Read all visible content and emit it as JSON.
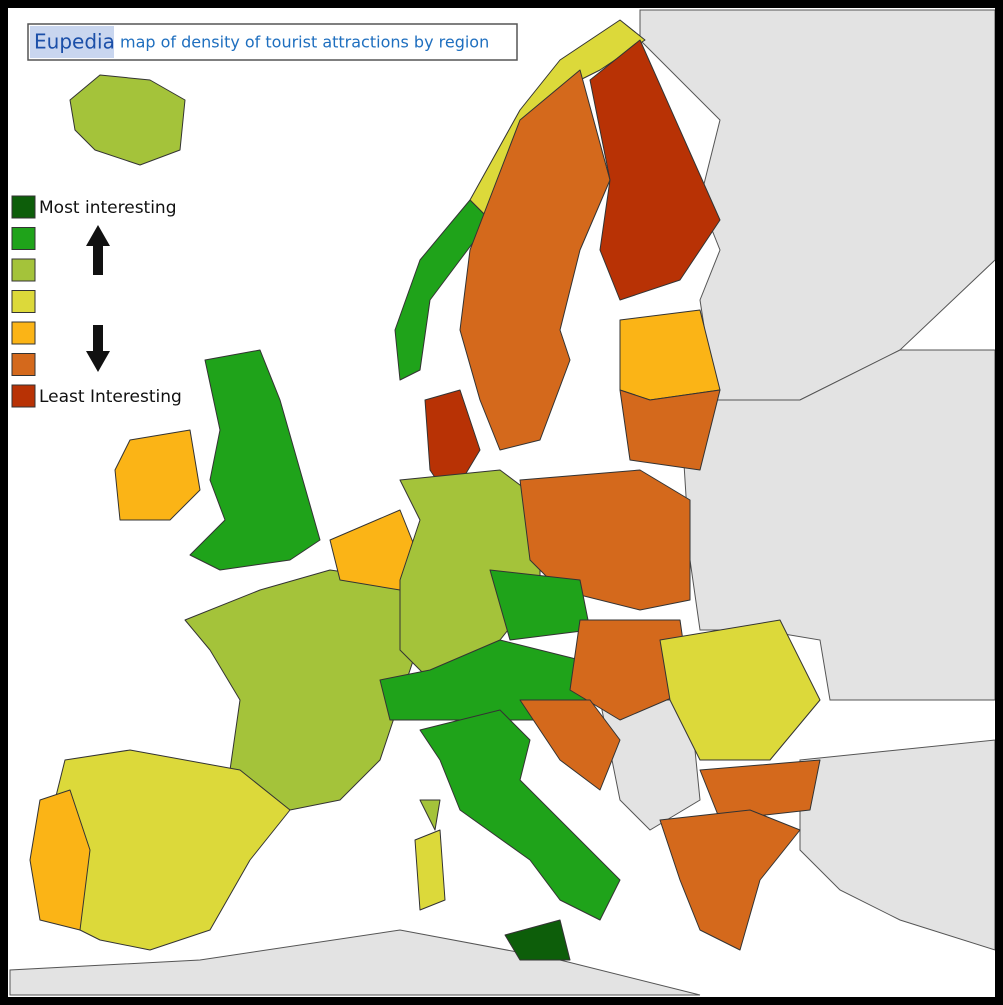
{
  "header": {
    "brand": "Eupedia",
    "title": "map of density of tourist attractions by region"
  },
  "legend": {
    "items": [
      {
        "label": "Most interesting",
        "color": "#0d5e0a"
      },
      {
        "color": "#1fa31a"
      },
      {
        "color": "#a4c33a"
      },
      {
        "color": "#dcd93a"
      },
      {
        "color": "#fbb416"
      },
      {
        "color": "#d4691c"
      },
      {
        "label": "Least Interesting",
        "color": "#b83205"
      }
    ]
  }
}
